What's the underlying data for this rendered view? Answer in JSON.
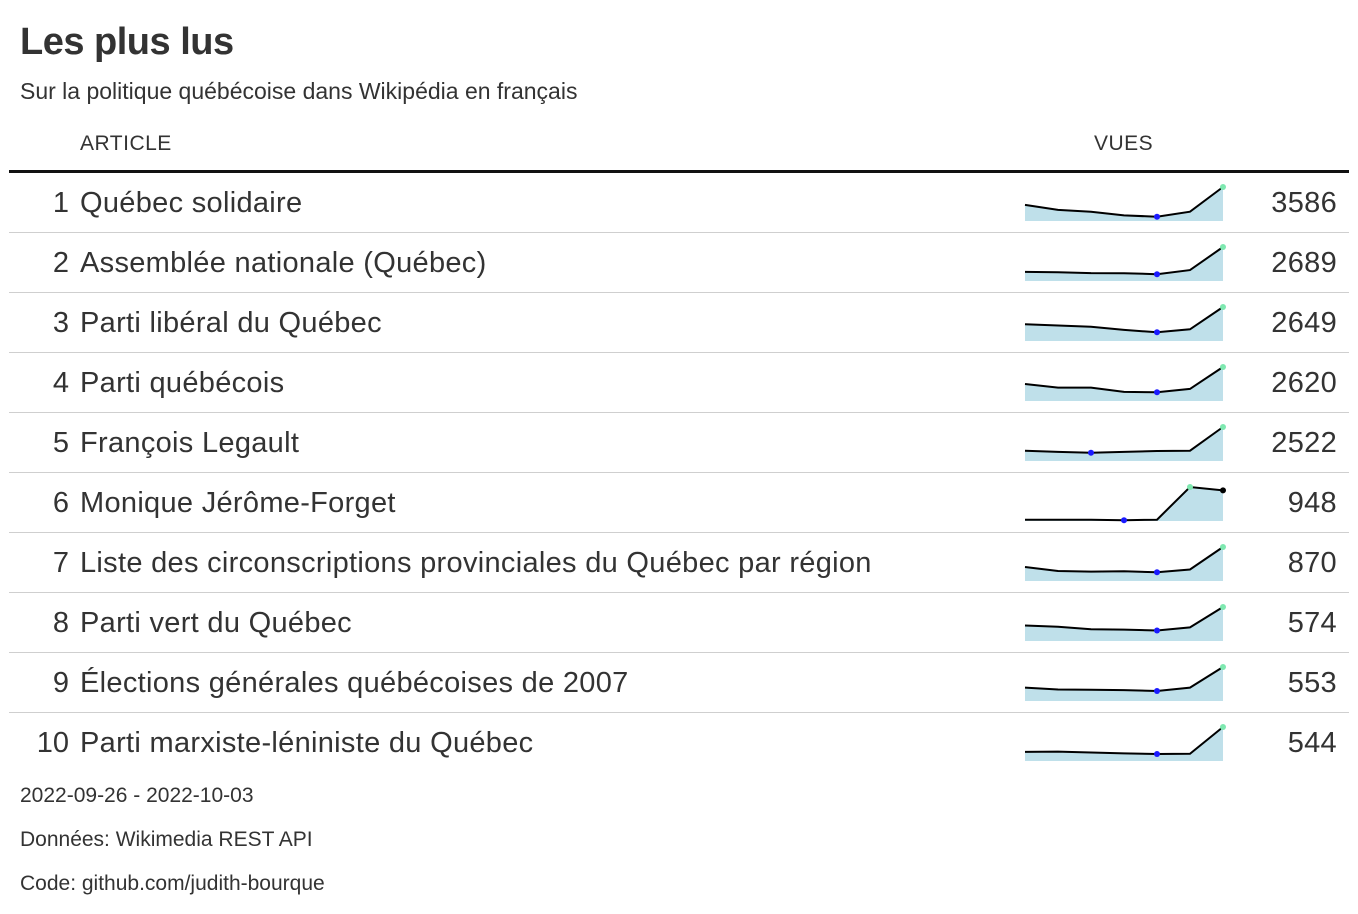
{
  "header": {
    "title": "Les plus lus",
    "subtitle": "Sur la politique québécoise dans Wikipédia en français",
    "col_article": "ARTICLE",
    "col_views": "VUES"
  },
  "footer": {
    "period": "2022-09-26 - 2022-10-03",
    "source": "Données: Wikimedia REST API",
    "code": "Code: github.com/judith-bourque"
  },
  "colors": {
    "line": "#000000",
    "area": "#bfe0ea",
    "min_point": "#1a1aff",
    "max_point": "#7ee8b0",
    "last_point": "#000000"
  },
  "chart_data": {
    "type": "table",
    "title": "Les plus lus",
    "subtitle": "Sur la politique québécoise dans Wikipédia en français",
    "columns": [
      "ARTICLE",
      "VUES"
    ],
    "rows": [
      {
        "rank": "1",
        "article": "Québec solidaire",
        "views": "3586",
        "trend": [
          260,
          180,
          150,
          90,
          70,
          150,
          550
        ]
      },
      {
        "rank": "2",
        "article": "Assemblée nationale (Québec)",
        "views": "2689",
        "trend": [
          150,
          145,
          130,
          128,
          112,
          180,
          560
        ]
      },
      {
        "rank": "3",
        "article": "Parti libéral du Québec",
        "views": "2649",
        "trend": [
          270,
          250,
          230,
          180,
          140,
          190,
          550
        ]
      },
      {
        "rank": "4",
        "article": "Parti québécois",
        "views": "2620",
        "trend": [
          280,
          220,
          220,
          150,
          145,
          200,
          560
        ]
      },
      {
        "rank": "5",
        "article": "François Legault",
        "views": "2522",
        "trend": [
          170,
          150,
          135,
          150,
          165,
          170,
          560
        ]
      },
      {
        "rank": "6",
        "article": "Monique Jérôme-Forget",
        "views": "948",
        "trend": [
          5,
          5,
          5,
          3,
          5,
          130,
          117
        ]
      },
      {
        "rank": "7",
        "article": "Liste des circonscriptions provinciales du Québec par région",
        "views": "870",
        "trend": [
          230,
          165,
          155,
          160,
          145,
          190,
          560
        ]
      },
      {
        "rank": "8",
        "article": "Parti vert du Québec",
        "views": "574",
        "trend": [
          250,
          230,
          190,
          185,
          170,
          220,
          550
        ]
      },
      {
        "rank": "9",
        "article": "Élections générales québécoises de 2007",
        "views": "553",
        "trend": [
          220,
          190,
          185,
          180,
          165,
          220,
          560
        ]
      },
      {
        "rank": "10",
        "article": "Parti marxiste-léniniste du Québec",
        "views": "544",
        "trend": [
          150,
          155,
          140,
          125,
          115,
          118,
          560
        ]
      }
    ]
  }
}
